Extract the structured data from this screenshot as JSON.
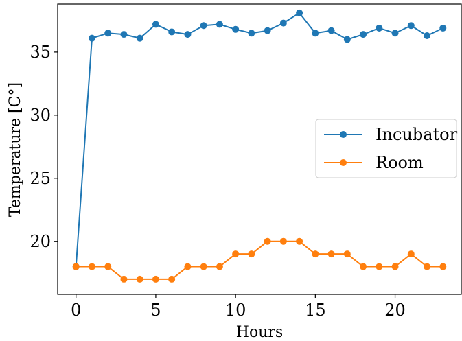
{
  "chart_data": {
    "type": "line",
    "title": "",
    "xlabel": "Hours",
    "ylabel": "Temperature [C°]",
    "xlim": [
      -1.15,
      24.15
    ],
    "ylim": [
      15.8,
      38.8
    ],
    "xticks": [
      0,
      5,
      10,
      15,
      20
    ],
    "yticks": [
      20,
      25,
      30,
      35
    ],
    "grid": false,
    "legend_position": "center-right",
    "x": [
      0,
      1,
      2,
      3,
      4,
      5,
      6,
      7,
      8,
      9,
      10,
      11,
      12,
      13,
      14,
      15,
      16,
      17,
      18,
      19,
      20,
      21,
      22,
      23
    ],
    "series": [
      {
        "name": "Incubator",
        "color": "#1f77b4",
        "values": [
          18.0,
          36.1,
          36.5,
          36.4,
          36.1,
          37.2,
          36.6,
          36.4,
          37.1,
          37.2,
          36.8,
          36.5,
          36.7,
          37.3,
          38.1,
          36.5,
          36.7,
          36.0,
          36.4,
          36.9,
          36.5,
          37.1,
          36.3,
          36.9
        ]
      },
      {
        "name": "Room",
        "color": "#ff7f0e",
        "values": [
          18,
          18,
          18,
          17,
          17,
          17,
          17,
          18,
          18,
          18,
          19,
          19,
          20,
          20,
          20,
          19,
          19,
          19,
          18,
          18,
          18,
          19,
          18,
          18
        ]
      }
    ]
  }
}
